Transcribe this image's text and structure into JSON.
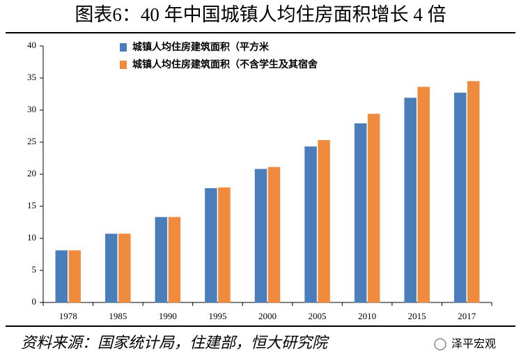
{
  "chart_data": {
    "type": "bar",
    "title": "图表6：40 年中国城镇人均住房面积增长 4 倍",
    "source": "资料来源：国家统计局，住建部，恒大研究院",
    "watermark": "泽平宏观",
    "categories": [
      "1978",
      "1985",
      "1990",
      "1995",
      "2000",
      "2005",
      "2010",
      "2015",
      "2017"
    ],
    "series": [
      {
        "name": "城镇人均住房建筑面积（平方米",
        "color": "#4a7ebb",
        "values": [
          8.1,
          10.7,
          13.3,
          17.8,
          20.8,
          24.3,
          27.9,
          31.9,
          32.7
        ]
      },
      {
        "name": "城镇人均住房建筑面积（不含学生及其宿舍",
        "color": "#f08a3c",
        "values": [
          8.1,
          10.7,
          13.3,
          17.9,
          21.1,
          25.3,
          29.4,
          33.6,
          34.5
        ]
      }
    ],
    "ylim": [
      0,
      40
    ],
    "yticks": [
      0,
      5,
      10,
      15,
      20,
      25,
      30,
      35,
      40
    ]
  }
}
